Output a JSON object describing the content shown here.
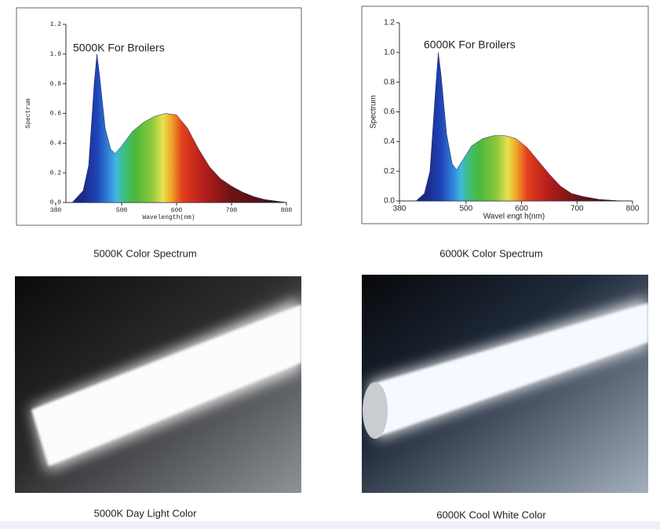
{
  "chart_data": [
    {
      "type": "area",
      "title": "5000K For Broilers",
      "xlabel": "Wavelength(nm)",
      "ylabel": "Spectrum",
      "x": [
        410,
        430,
        440,
        450,
        455,
        460,
        470,
        480,
        488,
        500,
        520,
        540,
        560,
        580,
        600,
        620,
        640,
        660,
        680,
        700,
        720,
        740,
        760,
        780,
        800
      ],
      "values": [
        0,
        0.08,
        0.25,
        0.8,
        1.0,
        0.85,
        0.5,
        0.36,
        0.33,
        0.38,
        0.48,
        0.54,
        0.58,
        0.6,
        0.59,
        0.5,
        0.36,
        0.24,
        0.16,
        0.11,
        0.07,
        0.04,
        0.02,
        0.01,
        0
      ],
      "xlim": [
        380,
        800
      ],
      "ylim": [
        0,
        1.2
      ],
      "xticks": [
        380,
        500,
        600,
        700,
        800
      ],
      "yticks": [
        {
          "value": 0,
          "label": "0.0"
        },
        0.2,
        0.4,
        0.6,
        0.8,
        {
          "value": 1,
          "label": "1.0"
        },
        1.2
      ]
    },
    {
      "type": "area",
      "title": "6000K For Broilers",
      "xlabel": "Wavel engt h(nm)",
      "ylabel": "Spectrum",
      "x": [
        410,
        425,
        435,
        445,
        450,
        455,
        465,
        475,
        483,
        495,
        510,
        530,
        550,
        570,
        590,
        610,
        630,
        650,
        670,
        690,
        710,
        740,
        780
      ],
      "values": [
        0,
        0.05,
        0.2,
        0.75,
        1.0,
        0.85,
        0.45,
        0.25,
        0.21,
        0.28,
        0.37,
        0.42,
        0.44,
        0.44,
        0.42,
        0.36,
        0.27,
        0.18,
        0.1,
        0.05,
        0.03,
        0.01,
        0
      ],
      "xlim": [
        380,
        800
      ],
      "ylim": [
        0,
        1.2
      ],
      "xticks": [
        380,
        500,
        600,
        700,
        800
      ],
      "yticks": [
        {
          "value": 0,
          "label": "0.0"
        },
        0.2,
        0.4,
        0.6,
        0.8,
        {
          "value": 1,
          "label": "1.0"
        },
        1.2
      ]
    }
  ],
  "captions": [
    "5000K Color Spectrum",
    "6000K Color Spectrum",
    "5000K Day Light Color",
    "6000K Cool White Color"
  ]
}
